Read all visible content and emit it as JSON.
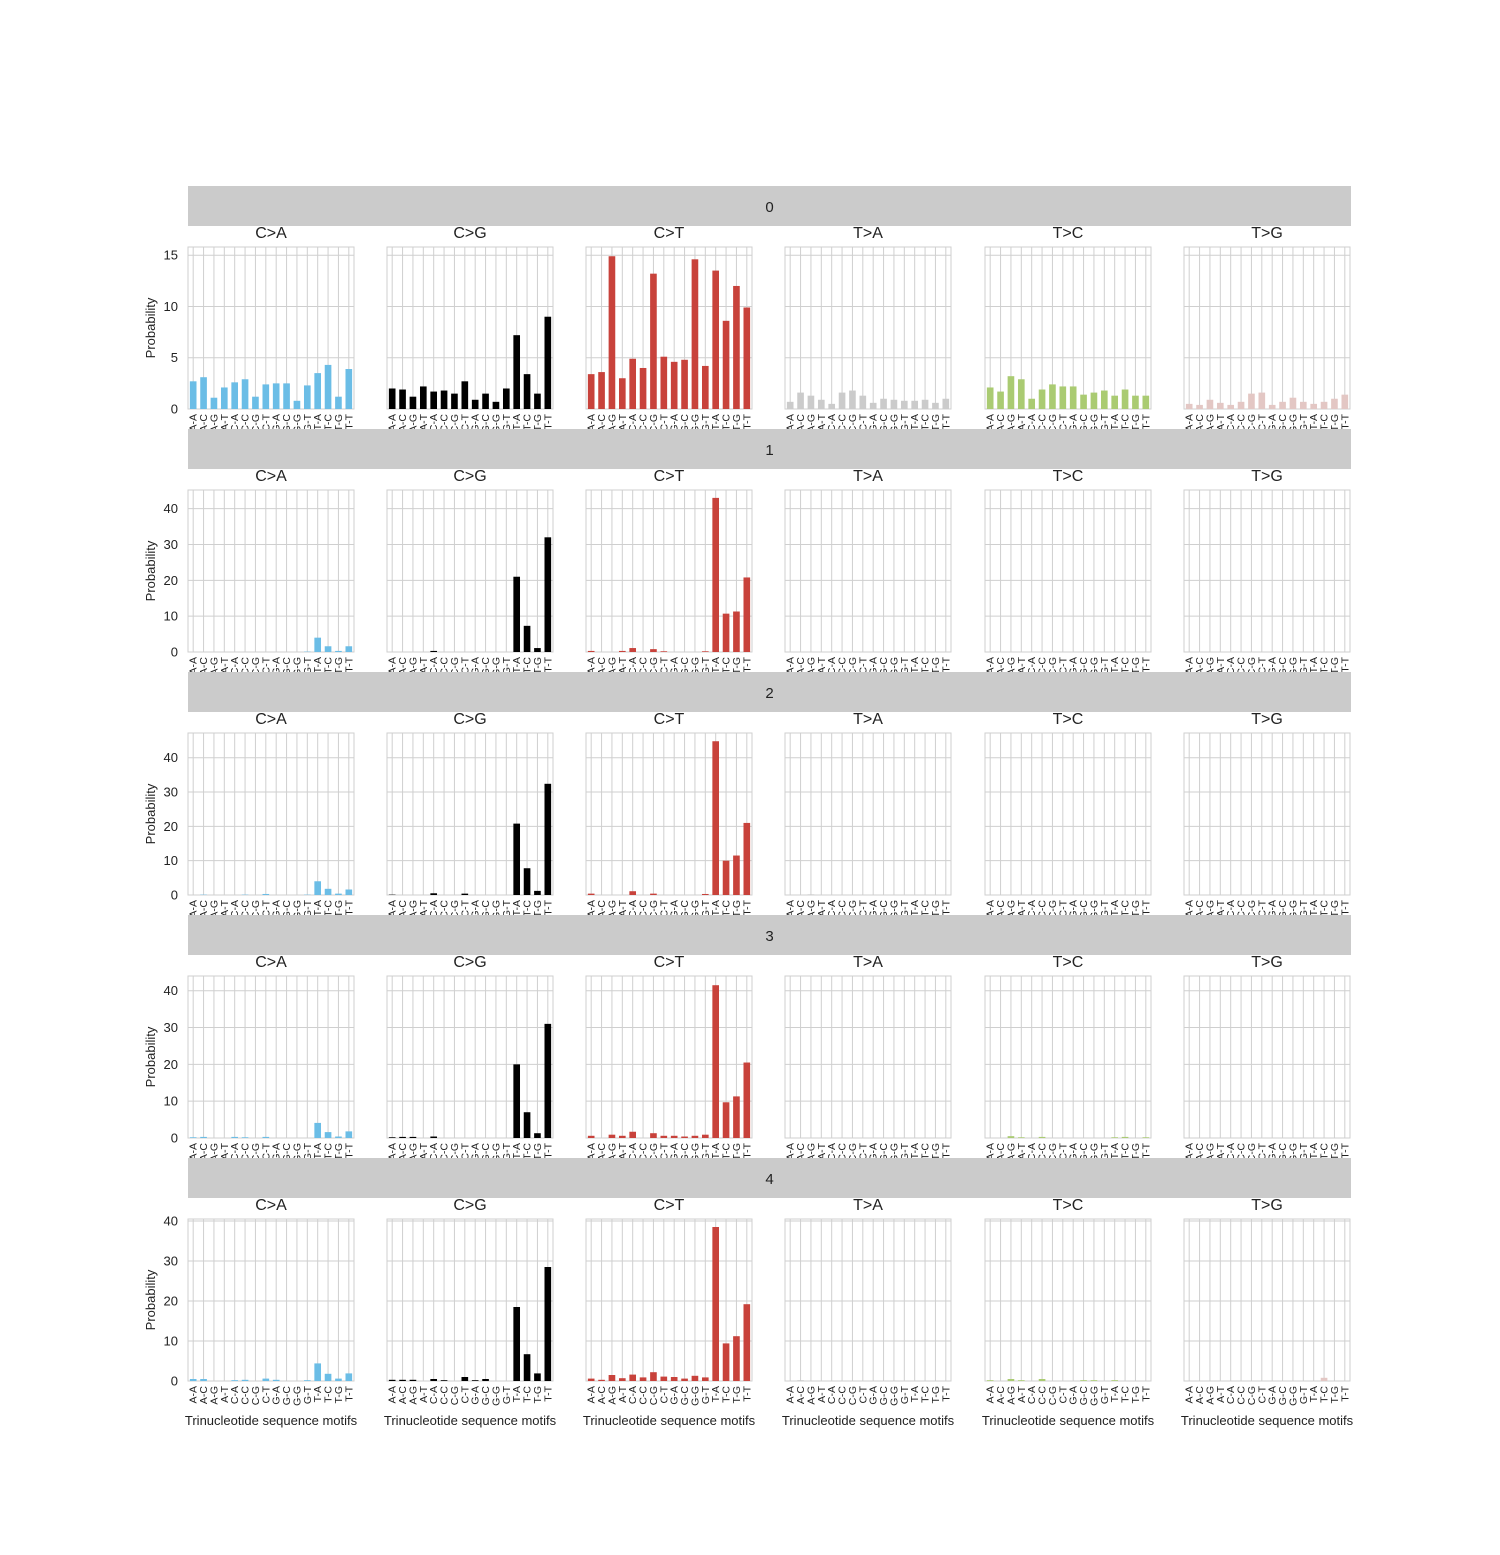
{
  "figure": {
    "ylabel": "Probability",
    "xlabel": "Trinucleotide sequence motifs"
  },
  "chart_data": {
    "type": "bar",
    "subtype": "faceted mutational signature profile",
    "rows": [
      "0",
      "1",
      "2",
      "3",
      "4"
    ],
    "panels": [
      "C>A",
      "C>G",
      "C>T",
      "T>A",
      "T>C",
      "T>G"
    ],
    "panel_colors": {
      "C>A": "#6bbde6",
      "C>G": "#000000",
      "C>T": "#c8423b",
      "T>A": "#cbcbcb",
      "T>C": "#aacb72",
      "T>G": "#e3c7c4"
    },
    "categories": [
      "A-A",
      "A-C",
      "A-G",
      "A-T",
      "C-A",
      "C-C",
      "C-G",
      "C-T",
      "G-A",
      "G-C",
      "G-G",
      "G-T",
      "T-A",
      "T-C",
      "T-G",
      "T-T"
    ],
    "ylabel": "Probability",
    "xlabel": "Trinucleotide sequence motifs",
    "yticks": {
      "0": [
        0,
        5,
        10,
        15
      ],
      "1": [
        0,
        10,
        20,
        30,
        40
      ],
      "2": [
        0,
        10,
        20,
        30,
        40
      ],
      "3": [
        0,
        10,
        20,
        30,
        40
      ],
      "4": [
        0,
        10,
        20,
        30,
        40
      ]
    },
    "ylim": {
      "0": [
        0,
        15.8
      ],
      "1": [
        0,
        45.2
      ],
      "2": [
        0,
        47.2
      ],
      "3": [
        0,
        44.0
      ],
      "4": [
        0,
        40.5
      ]
    },
    "series": {
      "0": {
        "C>A": [
          2.7,
          3.1,
          1.1,
          2.1,
          2.6,
          2.9,
          1.2,
          2.4,
          2.5,
          2.5,
          0.8,
          2.3,
          3.5,
          4.3,
          1.2,
          3.9
        ],
        "C>G": [
          2.0,
          1.9,
          1.2,
          2.2,
          1.7,
          1.8,
          1.5,
          2.7,
          0.9,
          1.5,
          0.7,
          2.0,
          7.2,
          3.4,
          1.5,
          9.0
        ],
        "C>T": [
          3.4,
          3.6,
          14.9,
          3.0,
          4.9,
          4.0,
          13.2,
          5.1,
          4.6,
          4.8,
          14.6,
          4.2,
          13.5,
          8.6,
          12.0,
          9.9
        ],
        "T>A": [
          0.7,
          1.6,
          1.3,
          0.9,
          0.5,
          1.6,
          1.8,
          1.3,
          0.6,
          1.0,
          0.9,
          0.8,
          0.8,
          0.9,
          0.6,
          1.0
        ],
        "T>C": [
          2.1,
          1.7,
          3.2,
          2.9,
          1.0,
          1.9,
          2.4,
          2.2,
          2.2,
          1.4,
          1.6,
          1.8,
          1.3,
          1.9,
          1.3,
          1.3
        ],
        "T>G": [
          0.5,
          0.4,
          0.9,
          0.6,
          0.4,
          0.7,
          1.5,
          1.6,
          0.4,
          0.7,
          1.1,
          0.7,
          0.5,
          0.7,
          1.0,
          1.4
        ]
      },
      "1": {
        "C>A": [
          0,
          0,
          0,
          0,
          0,
          0,
          0,
          0,
          0,
          0,
          0,
          0.1,
          4.0,
          1.6,
          0.3,
          1.6
        ],
        "C>G": [
          0,
          0,
          0,
          0,
          0.3,
          0,
          0,
          0,
          0,
          0,
          0,
          0,
          21.0,
          7.3,
          1.1,
          32.0
        ],
        "C>T": [
          0.3,
          0,
          0,
          0.3,
          1.1,
          0,
          0.8,
          0.2,
          0,
          0,
          0,
          0.2,
          43.0,
          10.7,
          11.3,
          20.8
        ],
        "T>A": [
          0,
          0,
          0,
          0,
          0,
          0,
          0,
          0,
          0,
          0,
          0,
          0,
          0,
          0,
          0,
          0
        ],
        "T>C": [
          0,
          0,
          0,
          0,
          0,
          0,
          0,
          0,
          0,
          0,
          0,
          0,
          0,
          0,
          0,
          0
        ],
        "T>G": [
          0,
          0,
          0,
          0,
          0,
          0,
          0,
          0,
          0,
          0,
          0,
          0,
          0,
          0,
          0,
          0
        ]
      },
      "2": {
        "C>A": [
          0,
          0.1,
          0,
          0,
          0,
          0.1,
          0,
          0.3,
          0,
          0,
          0,
          0.1,
          4.0,
          1.8,
          0.4,
          1.6
        ],
        "C>G": [
          0.1,
          0,
          0,
          0,
          0.5,
          0,
          0,
          0.4,
          0,
          0,
          0,
          0,
          20.8,
          7.8,
          1.2,
          32.4
        ],
        "C>T": [
          0.4,
          0,
          0,
          0,
          1.1,
          0,
          0.4,
          0,
          0,
          0,
          0,
          0.3,
          44.8,
          10.0,
          11.5,
          21.0
        ],
        "T>A": [
          0,
          0,
          0.2,
          0,
          0,
          0,
          0,
          0,
          0,
          0,
          0,
          0,
          0,
          0,
          0,
          0
        ],
        "T>C": [
          0,
          0,
          0,
          0,
          0,
          0,
          0,
          0,
          0,
          0,
          0,
          0,
          0,
          0,
          0,
          0
        ],
        "T>G": [
          0,
          0,
          0,
          0,
          0,
          0,
          0,
          0,
          0,
          0,
          0,
          0,
          0,
          0,
          0,
          0
        ]
      },
      "3": {
        "C>A": [
          0.2,
          0.3,
          0,
          0,
          0.3,
          0.2,
          0,
          0.3,
          0,
          0,
          0,
          0,
          4.1,
          1.6,
          0.4,
          1.8
        ],
        "C>G": [
          0.2,
          0.3,
          0.3,
          0,
          0.4,
          0,
          0,
          0,
          0,
          0,
          0,
          0,
          20.0,
          7.0,
          1.3,
          31.0
        ],
        "C>T": [
          0.6,
          0,
          0.9,
          0.6,
          1.7,
          0,
          1.3,
          0.6,
          0.6,
          0.4,
          0.6,
          0.9,
          41.5,
          9.7,
          11.3,
          20.5
        ],
        "T>A": [
          0,
          0,
          0,
          0,
          0,
          0.1,
          0,
          0,
          0,
          0,
          0,
          0,
          0,
          0,
          0,
          0
        ],
        "T>C": [
          0,
          0,
          0.5,
          0.2,
          0,
          0.3,
          0,
          0,
          0,
          0,
          0,
          0,
          0.2,
          0.3,
          0,
          0.2
        ],
        "T>G": [
          0,
          0,
          0,
          0,
          0,
          0,
          0,
          0,
          0,
          0,
          0,
          0,
          0,
          0,
          0,
          0
        ]
      },
      "4": {
        "C>A": [
          0.5,
          0.5,
          0,
          0,
          0.2,
          0.3,
          0,
          0.6,
          0.3,
          0,
          0,
          0.2,
          4.4,
          1.8,
          0.6,
          1.9
        ],
        "C>G": [
          0.3,
          0.3,
          0.3,
          0,
          0.5,
          0.2,
          0,
          1.0,
          0.2,
          0.5,
          0,
          0,
          18.5,
          6.7,
          1.9,
          28.5
        ],
        "C>T": [
          0.6,
          0.3,
          1.5,
          0.7,
          1.6,
          0.9,
          2.2,
          1.1,
          1.0,
          0.6,
          1.3,
          0.9,
          38.5,
          9.4,
          11.2,
          19.2
        ],
        "T>A": [
          0,
          0.2,
          0,
          0,
          0,
          0,
          0,
          0,
          0,
          0,
          0.1,
          0,
          0,
          0,
          0,
          0
        ],
        "T>C": [
          0.2,
          0,
          0.5,
          0.2,
          0,
          0.5,
          0,
          0,
          0,
          0.2,
          0.2,
          0,
          0.2,
          0,
          0,
          0
        ],
        "T>G": [
          0,
          0,
          0,
          0,
          0,
          0,
          0,
          0,
          0,
          0,
          0,
          0,
          0,
          0.8,
          0,
          0
        ]
      }
    }
  }
}
